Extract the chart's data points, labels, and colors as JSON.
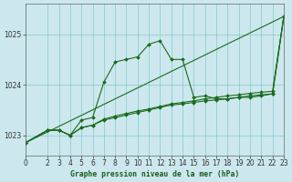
{
  "title": "Graphe pression niveau de la mer (hPa)",
  "background_color": "#cce8ee",
  "grid_color": "#88c8c8",
  "line_color": "#1a6b1a",
  "xlim": [
    0,
    23
  ],
  "ylim": [
    1022.6,
    1025.6
  ],
  "xticks": [
    0,
    2,
    3,
    4,
    5,
    6,
    7,
    8,
    9,
    10,
    11,
    12,
    13,
    14,
    15,
    16,
    17,
    18,
    19,
    20,
    21,
    22,
    23
  ],
  "yticks": [
    1023,
    1024,
    1025
  ],
  "series1": {
    "x": [
      0,
      2,
      3,
      4,
      5,
      6,
      7,
      8,
      9,
      10,
      11,
      12,
      13,
      14,
      15,
      16,
      17,
      18,
      19,
      20,
      21,
      22,
      23
    ],
    "y": [
      1022.85,
      1023.1,
      1023.1,
      1023.0,
      1023.15,
      1023.2,
      1023.3,
      1023.35,
      1023.4,
      1023.45,
      1023.5,
      1023.55,
      1023.6,
      1023.62,
      1023.65,
      1023.68,
      1023.7,
      1023.72,
      1023.75,
      1023.78,
      1023.8,
      1023.82,
      1025.35
    ]
  },
  "series2": {
    "x": [
      0,
      2,
      3,
      4,
      5,
      6,
      7,
      8,
      9,
      10,
      11,
      12,
      13,
      14,
      15,
      16,
      17,
      18,
      19,
      20,
      21,
      22,
      23
    ],
    "y": [
      1022.85,
      1023.1,
      1023.1,
      1023.0,
      1023.15,
      1023.2,
      1023.32,
      1023.38,
      1023.43,
      1023.48,
      1023.52,
      1023.57,
      1023.62,
      1023.65,
      1023.68,
      1023.72,
      1023.75,
      1023.78,
      1023.8,
      1023.83,
      1023.85,
      1023.87,
      1025.35
    ]
  },
  "series3": {
    "x": [
      0,
      2,
      3,
      4,
      5,
      6,
      7,
      8,
      9,
      10,
      11,
      12,
      13,
      14,
      15,
      16,
      17,
      18,
      19,
      20,
      21,
      22,
      23
    ],
    "y": [
      1022.85,
      1023.1,
      1023.1,
      1023.0,
      1023.3,
      1023.35,
      1024.05,
      1024.45,
      1024.5,
      1024.55,
      1024.8,
      1024.87,
      1024.5,
      1024.5,
      1023.75,
      1023.78,
      1023.72,
      1023.72,
      1023.75,
      1023.75,
      1023.78,
      1023.82,
      1025.35
    ]
  },
  "series4": {
    "x": [
      0,
      23
    ],
    "y": [
      1022.85,
      1025.35
    ]
  }
}
